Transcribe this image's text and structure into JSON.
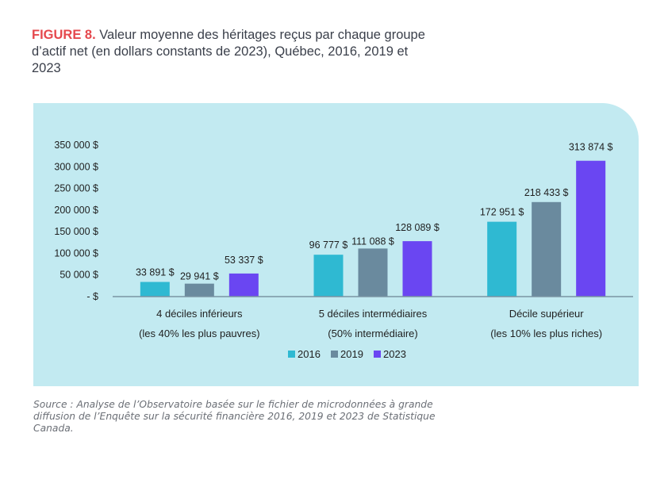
{
  "figure": {
    "label": "FIGURE 8.",
    "title": "Valeur moyenne des héritages reçus par chaque groupe d’actif net (en dollars constants de 2023), Québec, 2016, 2019 et 2023"
  },
  "source": "Source : Analyse de l’Observatoire basée sur le fichier de microdonnées à grande diffusion de l’Enquête sur la sécurité financière 2016, 2019 et 2023 de Statistique Canada.",
  "chart_data": {
    "type": "bar",
    "title": "Valeur moyenne des héritages reçus par chaque groupe d’actif net (en dollars constants de 2023), Québec, 2016, 2019 et 2023",
    "xlabel": "",
    "ylabel": "",
    "ylim": [
      0,
      350000
    ],
    "grid": false,
    "legend": "bottom-center",
    "y_ticks": [
      0,
      50000,
      100000,
      150000,
      200000,
      250000,
      300000,
      350000
    ],
    "y_tick_labels": [
      "-   $",
      "50 000 $",
      "100 000 $",
      "150 000 $",
      "200 000 $",
      "250 000 $",
      "300 000 $",
      "350 000 $"
    ],
    "categories": [
      [
        "4 déciles inférieurs",
        "(les 40% les plus pauvres)"
      ],
      [
        "5 déciles intermédiaires",
        "(50% intermédiaire)"
      ],
      [
        "Décile supérieur",
        "(les 10% les plus riches)"
      ]
    ],
    "series": [
      {
        "name": "2016",
        "color": "#2fb9d2",
        "values": [
          33891,
          96777,
          172951
        ],
        "labels": [
          "33 891 $",
          "96 777 $",
          "172 951 $"
        ]
      },
      {
        "name": "2019",
        "color": "#6a8a9e",
        "values": [
          29941,
          111088,
          218433
        ],
        "labels": [
          "29 941 $",
          "111 088 $",
          "218 433 $"
        ]
      },
      {
        "name": "2023",
        "color": "#6a46f2",
        "values": [
          53337,
          128089,
          313874
        ],
        "labels": [
          "53 337 $",
          "128 089 $",
          "313 874 $"
        ]
      }
    ],
    "colors": {
      "panel_bg": "#c2eaf1",
      "axis": "#7a94a3",
      "text": "#1f1f1f"
    }
  }
}
